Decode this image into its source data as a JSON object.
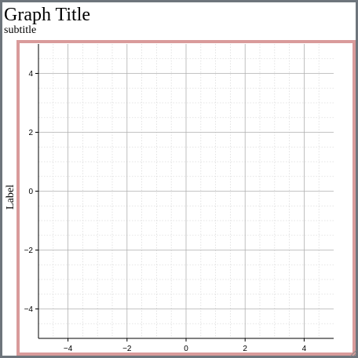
{
  "chart_data": {
    "type": "scatter",
    "title": "Graph Title",
    "subtitle": "subtitle",
    "xlabel": "",
    "ylabel": "Label",
    "xlim": [
      -5,
      5
    ],
    "ylim": [
      -5,
      5
    ],
    "xticks": [
      -4,
      -2,
      0,
      2,
      4
    ],
    "yticks": [
      -4,
      -2,
      0,
      2,
      4
    ],
    "xtick_labels": [
      "−4",
      "−2",
      "0",
      "2",
      "4"
    ],
    "ytick_labels": [
      "−4",
      "−2",
      "0",
      "2",
      "4"
    ],
    "grid": true,
    "minor_grid": true,
    "series": []
  },
  "colors": {
    "frame": "#6e757c",
    "plot_border": "#d99b9b",
    "major_grid": "#b0b0b0",
    "minor_grid": "#dcdcdc",
    "axis": "#000000"
  }
}
